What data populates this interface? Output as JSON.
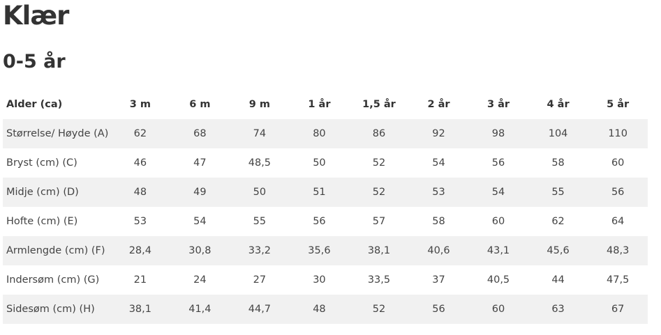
{
  "page_title": "Klær",
  "section_title": "0-5 år",
  "table": {
    "header_label": "Alder (ca)",
    "columns": [
      "3 m",
      "6 m",
      "9 m",
      "1 år",
      "1,5 år",
      "2 år",
      "3 år",
      "4 år",
      "5 år"
    ],
    "rows": [
      {
        "label": "Størrelse/ Høyde (A)",
        "values": [
          "62",
          "68",
          "74",
          "80",
          "86",
          "92",
          "98",
          "104",
          "110"
        ]
      },
      {
        "label": "Bryst (cm) (C)",
        "values": [
          "46",
          "47",
          "48,5",
          "50",
          "52",
          "54",
          "56",
          "58",
          "60"
        ]
      },
      {
        "label": "Midje (cm) (D)",
        "values": [
          "48",
          "49",
          "50",
          "51",
          "52",
          "53",
          "54",
          "55",
          "56"
        ]
      },
      {
        "label": "Hofte (cm) (E)",
        "values": [
          "53",
          "54",
          "55",
          "56",
          "57",
          "58",
          "60",
          "62",
          "64"
        ]
      },
      {
        "label": "Armlengde (cm) (F)",
        "values": [
          "28,4",
          "30,8",
          "33,2",
          "35,6",
          "38,1",
          "40,6",
          "43,1",
          "45,6",
          "48,3"
        ]
      },
      {
        "label": "Indersøm (cm) (G)",
        "values": [
          "21",
          "24",
          "27",
          "30",
          "33,5",
          "37",
          "40,5",
          "44",
          "47,5"
        ]
      },
      {
        "label": "Sidesøm (cm) (H)",
        "values": [
          "38,1",
          "41,4",
          "44,7",
          "48",
          "52",
          "56",
          "60",
          "63",
          "67"
        ]
      }
    ]
  }
}
